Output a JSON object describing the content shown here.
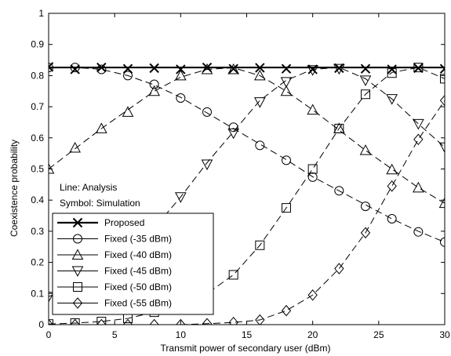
{
  "chart_data": {
    "type": "line",
    "xlabel": "Transmit power of secondary user (dBm)",
    "ylabel": "Coexistence probability",
    "xlim": [
      0,
      30
    ],
    "ylim": [
      0,
      1
    ],
    "xticks": [
      0,
      5,
      10,
      15,
      20,
      25,
      30
    ],
    "yticks": [
      0,
      0.1,
      0.2,
      0.3,
      0.4,
      0.5,
      0.6,
      0.7,
      0.8,
      0.9,
      1
    ],
    "grid": false,
    "legend_position": "bottom-left",
    "annotations": [
      "Line: Analysis",
      "Symbol: Simulation"
    ],
    "series": [
      {
        "name": "Proposed",
        "marker": "x",
        "line_style": "solid-thick",
        "analysis_x": [
          0,
          2,
          4,
          6,
          8,
          10,
          12,
          14,
          16,
          18,
          20,
          22,
          24,
          26,
          28,
          30
        ],
        "analysis_y": [
          0.826,
          0.826,
          0.826,
          0.826,
          0.826,
          0.826,
          0.826,
          0.826,
          0.826,
          0.826,
          0.826,
          0.826,
          0.826,
          0.826,
          0.826,
          0.826
        ],
        "sim_x": [
          0,
          2,
          4,
          6,
          8,
          10,
          12,
          14,
          16,
          18,
          20,
          22,
          24,
          26,
          28,
          30
        ],
        "sim_y": [
          0.828,
          0.82,
          0.826,
          0.822,
          0.824,
          0.82,
          0.826,
          0.822,
          0.825,
          0.822,
          0.82,
          0.824,
          0.822,
          0.82,
          0.824,
          0.822
        ]
      },
      {
        "name": "Fixed (-35 dBm)",
        "marker": "circle",
        "line_style": "dashed",
        "analysis_x": [
          0,
          2,
          4,
          6,
          8,
          10,
          12,
          14,
          16,
          18,
          20,
          22,
          24,
          26,
          28,
          30
        ],
        "analysis_y": [
          0.826,
          0.826,
          0.82,
          0.8,
          0.77,
          0.73,
          0.68,
          0.63,
          0.58,
          0.53,
          0.475,
          0.43,
          0.385,
          0.34,
          0.3,
          0.265
        ],
        "sim_x": [
          0,
          2,
          4,
          6,
          8,
          10,
          12,
          14,
          16,
          18,
          20,
          22,
          24,
          26,
          28,
          30
        ],
        "sim_y": [
          0.826,
          0.826,
          0.82,
          0.8,
          0.772,
          0.728,
          0.683,
          0.634,
          0.576,
          0.528,
          0.474,
          0.43,
          0.38,
          0.34,
          0.298,
          0.265
        ]
      },
      {
        "name": "Fixed (-40 dBm)",
        "marker": "triangle-up",
        "line_style": "dashed",
        "analysis_x": [
          0,
          2,
          4,
          6,
          8,
          10,
          12,
          14,
          16,
          18,
          20,
          22,
          24,
          26,
          28,
          30
        ],
        "analysis_y": [
          0.5,
          0.565,
          0.63,
          0.69,
          0.75,
          0.795,
          0.82,
          0.825,
          0.8,
          0.75,
          0.69,
          0.625,
          0.56,
          0.5,
          0.44,
          0.39
        ],
        "sim_x": [
          0,
          2,
          4,
          6,
          8,
          10,
          12,
          14,
          16,
          18,
          20,
          22,
          24,
          26,
          28,
          30
        ],
        "sim_y": [
          0.5,
          0.568,
          0.63,
          0.683,
          0.75,
          0.8,
          0.82,
          0.82,
          0.8,
          0.75,
          0.69,
          0.63,
          0.56,
          0.498,
          0.44,
          0.39
        ]
      },
      {
        "name": "Fixed (-45 dBm)",
        "marker": "triangle-down",
        "line_style": "dashed",
        "analysis_x": [
          0,
          2,
          4,
          6,
          8,
          10,
          12,
          14,
          16,
          18,
          20,
          22,
          24,
          26,
          28,
          30
        ],
        "analysis_y": [
          0.09,
          0.125,
          0.17,
          0.23,
          0.31,
          0.41,
          0.52,
          0.62,
          0.72,
          0.785,
          0.82,
          0.826,
          0.79,
          0.725,
          0.645,
          0.57
        ],
        "sim_x": [
          0,
          2,
          4,
          6,
          8,
          10,
          12,
          14,
          16,
          18,
          20,
          22,
          24,
          26,
          28,
          30
        ],
        "sim_y": [
          0.09,
          0.125,
          0.17,
          0.23,
          0.31,
          0.41,
          0.515,
          0.615,
          0.715,
          0.78,
          0.818,
          0.822,
          0.785,
          0.725,
          0.645,
          0.57
        ]
      },
      {
        "name": "Fixed (-50 dBm)",
        "marker": "square",
        "line_style": "dashed",
        "analysis_x": [
          0,
          2,
          4,
          6,
          8,
          10,
          12,
          14,
          16,
          18,
          20,
          22,
          24,
          26,
          28,
          30
        ],
        "analysis_y": [
          0.002,
          0.005,
          0.01,
          0.02,
          0.04,
          0.065,
          0.1,
          0.16,
          0.255,
          0.375,
          0.5,
          0.63,
          0.74,
          0.81,
          0.826,
          0.79
        ],
        "sim_x": [
          0,
          2,
          4,
          6,
          8,
          10,
          12,
          14,
          16,
          18,
          20,
          22,
          24,
          26,
          28,
          30
        ],
        "sim_y": [
          0.002,
          0.005,
          0.01,
          0.02,
          0.04,
          0.065,
          0.1,
          0.16,
          0.255,
          0.375,
          0.5,
          0.63,
          0.74,
          0.808,
          0.826,
          0.79
        ]
      },
      {
        "name": "Fixed (-55 dBm)",
        "marker": "diamond",
        "line_style": "dashed",
        "analysis_x": [
          0,
          2,
          4,
          6,
          8,
          10,
          12,
          14,
          16,
          18,
          20,
          22,
          24,
          26,
          28,
          30
        ],
        "analysis_y": [
          0.0,
          0.0,
          0.0,
          0.0,
          0.0,
          0.0,
          0.003,
          0.007,
          0.015,
          0.045,
          0.095,
          0.18,
          0.295,
          0.445,
          0.595,
          0.72
        ],
        "sim_x": [
          0,
          2,
          4,
          6,
          8,
          10,
          12,
          14,
          16,
          18,
          20,
          22,
          24,
          26,
          28,
          30
        ],
        "sim_y": [
          0.0,
          0.0,
          0.0,
          0.0,
          0.0,
          0.0,
          0.003,
          0.007,
          0.015,
          0.045,
          0.095,
          0.18,
          0.295,
          0.445,
          0.595,
          0.72
        ]
      }
    ]
  }
}
